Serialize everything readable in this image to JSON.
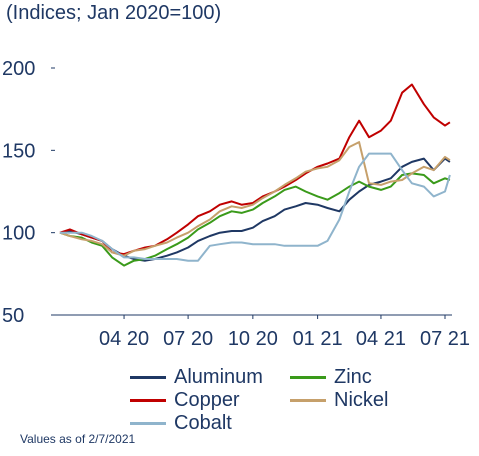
{
  "subtitle": "(Indices; Jan 2020=100)",
  "footnote": "Values as of 2/7/2021",
  "chart_data": {
    "type": "line",
    "title": "",
    "subtitle": "(Indices; Jan 2020=100)",
    "xlabel": "",
    "ylabel": "",
    "ylim": [
      50,
      200
    ],
    "yticks": [
      50,
      100,
      150,
      200
    ],
    "xlim": [
      "2020-01",
      "2021-07"
    ],
    "x_tick_labels": [
      {
        "label": "04 20",
        "x": "2020-04"
      },
      {
        "label": "07 20",
        "x": "2020-07"
      },
      {
        "label": "10 20",
        "x": "2020-10"
      },
      {
        "label": "01 21",
        "x": "2021-01"
      },
      {
        "label": "04 21",
        "x": "2021-04"
      },
      {
        "label": "07 21",
        "x": "2021-07"
      }
    ],
    "grid": false,
    "legend_position": "bottom",
    "series": [
      {
        "name": "Aluminum",
        "color": "#1f3864",
        "points": [
          [
            "2020-01-01",
            100
          ],
          [
            "2020-01-15",
            101
          ],
          [
            "2020-02-01",
            99
          ],
          [
            "2020-02-15",
            97
          ],
          [
            "2020-03-01",
            95
          ],
          [
            "2020-03-15",
            90
          ],
          [
            "2020-04-01",
            86
          ],
          [
            "2020-04-15",
            84
          ],
          [
            "2020-05-01",
            83
          ],
          [
            "2020-05-15",
            84
          ],
          [
            "2020-06-01",
            86
          ],
          [
            "2020-06-15",
            88
          ],
          [
            "2020-07-01",
            91
          ],
          [
            "2020-07-15",
            95
          ],
          [
            "2020-08-01",
            98
          ],
          [
            "2020-08-15",
            100
          ],
          [
            "2020-09-01",
            101
          ],
          [
            "2020-09-15",
            101
          ],
          [
            "2020-10-01",
            103
          ],
          [
            "2020-10-15",
            107
          ],
          [
            "2020-11-01",
            110
          ],
          [
            "2020-11-15",
            114
          ],
          [
            "2020-12-01",
            116
          ],
          [
            "2020-12-15",
            118
          ],
          [
            "2021-01-01",
            117
          ],
          [
            "2021-01-15",
            115
          ],
          [
            "2021-02-01",
            113
          ],
          [
            "2021-02-15",
            120
          ],
          [
            "2021-03-01",
            125
          ],
          [
            "2021-03-15",
            129
          ],
          [
            "2021-04-01",
            131
          ],
          [
            "2021-04-15",
            133
          ],
          [
            "2021-05-01",
            140
          ],
          [
            "2021-05-15",
            143
          ],
          [
            "2021-06-01",
            145
          ],
          [
            "2021-06-15",
            138
          ],
          [
            "2021-07-01",
            145
          ],
          [
            "2021-07-08",
            143
          ]
        ]
      },
      {
        "name": "Zinc",
        "color": "#3a9a1a",
        "points": [
          [
            "2020-01-01",
            100
          ],
          [
            "2020-01-15",
            98
          ],
          [
            "2020-02-01",
            97
          ],
          [
            "2020-02-15",
            94
          ],
          [
            "2020-03-01",
            92
          ],
          [
            "2020-03-15",
            85
          ],
          [
            "2020-04-01",
            80
          ],
          [
            "2020-04-15",
            83
          ],
          [
            "2020-05-01",
            84
          ],
          [
            "2020-05-15",
            86
          ],
          [
            "2020-06-01",
            90
          ],
          [
            "2020-06-15",
            93
          ],
          [
            "2020-07-01",
            97
          ],
          [
            "2020-07-15",
            102
          ],
          [
            "2020-08-01",
            106
          ],
          [
            "2020-08-15",
            110
          ],
          [
            "2020-09-01",
            113
          ],
          [
            "2020-09-15",
            112
          ],
          [
            "2020-10-01",
            114
          ],
          [
            "2020-10-15",
            118
          ],
          [
            "2020-11-01",
            122
          ],
          [
            "2020-11-15",
            126
          ],
          [
            "2020-12-01",
            128
          ],
          [
            "2020-12-15",
            125
          ],
          [
            "2021-01-01",
            122
          ],
          [
            "2021-01-15",
            120
          ],
          [
            "2021-02-01",
            124
          ],
          [
            "2021-02-15",
            128
          ],
          [
            "2021-03-01",
            131
          ],
          [
            "2021-03-15",
            128
          ],
          [
            "2021-04-01",
            126
          ],
          [
            "2021-04-15",
            128
          ],
          [
            "2021-05-01",
            135
          ],
          [
            "2021-05-15",
            136
          ],
          [
            "2021-06-01",
            135
          ],
          [
            "2021-06-15",
            130
          ],
          [
            "2021-07-01",
            133
          ],
          [
            "2021-07-08",
            132
          ]
        ]
      },
      {
        "name": "Copper",
        "color": "#c00000",
        "points": [
          [
            "2020-01-01",
            100
          ],
          [
            "2020-01-15",
            102
          ],
          [
            "2020-02-01",
            99
          ],
          [
            "2020-02-15",
            97
          ],
          [
            "2020-03-01",
            95
          ],
          [
            "2020-03-15",
            88
          ],
          [
            "2020-04-01",
            87
          ],
          [
            "2020-04-15",
            89
          ],
          [
            "2020-05-01",
            91
          ],
          [
            "2020-05-15",
            92
          ],
          [
            "2020-06-01",
            96
          ],
          [
            "2020-06-15",
            100
          ],
          [
            "2020-07-01",
            105
          ],
          [
            "2020-07-15",
            110
          ],
          [
            "2020-08-01",
            113
          ],
          [
            "2020-08-15",
            117
          ],
          [
            "2020-09-01",
            119
          ],
          [
            "2020-09-15",
            117
          ],
          [
            "2020-10-01",
            118
          ],
          [
            "2020-10-15",
            122
          ],
          [
            "2020-11-01",
            125
          ],
          [
            "2020-11-15",
            128
          ],
          [
            "2020-12-01",
            132
          ],
          [
            "2020-12-15",
            136
          ],
          [
            "2021-01-01",
            140
          ],
          [
            "2021-01-15",
            142
          ],
          [
            "2021-02-01",
            145
          ],
          [
            "2021-02-15",
            158
          ],
          [
            "2021-03-01",
            168
          ],
          [
            "2021-03-15",
            158
          ],
          [
            "2021-04-01",
            162
          ],
          [
            "2021-04-15",
            168
          ],
          [
            "2021-05-01",
            185
          ],
          [
            "2021-05-15",
            190
          ],
          [
            "2021-06-01",
            178
          ],
          [
            "2021-06-15",
            170
          ],
          [
            "2021-07-01",
            165
          ],
          [
            "2021-07-08",
            167
          ]
        ]
      },
      {
        "name": "Nickel",
        "color": "#c6a06b",
        "points": [
          [
            "2020-01-01",
            100
          ],
          [
            "2020-01-15",
            98
          ],
          [
            "2020-02-01",
            96
          ],
          [
            "2020-02-15",
            95
          ],
          [
            "2020-03-01",
            93
          ],
          [
            "2020-03-15",
            88
          ],
          [
            "2020-04-01",
            86
          ],
          [
            "2020-04-15",
            89
          ],
          [
            "2020-05-01",
            90
          ],
          [
            "2020-05-15",
            92
          ],
          [
            "2020-06-01",
            94
          ],
          [
            "2020-06-15",
            97
          ],
          [
            "2020-07-01",
            100
          ],
          [
            "2020-07-15",
            104
          ],
          [
            "2020-08-01",
            108
          ],
          [
            "2020-08-15",
            113
          ],
          [
            "2020-09-01",
            116
          ],
          [
            "2020-09-15",
            115
          ],
          [
            "2020-10-01",
            117
          ],
          [
            "2020-10-15",
            121
          ],
          [
            "2020-11-01",
            125
          ],
          [
            "2020-11-15",
            129
          ],
          [
            "2020-12-01",
            133
          ],
          [
            "2020-12-15",
            137
          ],
          [
            "2021-01-01",
            139
          ],
          [
            "2021-01-15",
            140
          ],
          [
            "2021-02-01",
            144
          ],
          [
            "2021-02-15",
            152
          ],
          [
            "2021-03-01",
            155
          ],
          [
            "2021-03-15",
            130
          ],
          [
            "2021-04-01",
            129
          ],
          [
            "2021-04-15",
            131
          ],
          [
            "2021-05-01",
            132
          ],
          [
            "2021-05-15",
            136
          ],
          [
            "2021-06-01",
            140
          ],
          [
            "2021-06-15",
            138
          ],
          [
            "2021-07-01",
            146
          ],
          [
            "2021-07-08",
            144
          ]
        ]
      },
      {
        "name": "Cobalt",
        "color": "#8fb4cc",
        "points": [
          [
            "2020-01-01",
            100
          ],
          [
            "2020-01-15",
            100
          ],
          [
            "2020-02-01",
            100
          ],
          [
            "2020-02-15",
            98
          ],
          [
            "2020-03-01",
            95
          ],
          [
            "2020-03-15",
            90
          ],
          [
            "2020-04-01",
            85
          ],
          [
            "2020-04-15",
            85
          ],
          [
            "2020-05-01",
            84
          ],
          [
            "2020-05-15",
            84
          ],
          [
            "2020-06-01",
            84
          ],
          [
            "2020-06-15",
            84
          ],
          [
            "2020-07-01",
            83
          ],
          [
            "2020-07-15",
            83
          ],
          [
            "2020-08-01",
            92
          ],
          [
            "2020-08-15",
            93
          ],
          [
            "2020-09-01",
            94
          ],
          [
            "2020-09-15",
            94
          ],
          [
            "2020-10-01",
            93
          ],
          [
            "2020-10-15",
            93
          ],
          [
            "2020-11-01",
            93
          ],
          [
            "2020-11-15",
            92
          ],
          [
            "2020-12-01",
            92
          ],
          [
            "2020-12-15",
            92
          ],
          [
            "2021-01-01",
            92
          ],
          [
            "2021-01-15",
            95
          ],
          [
            "2021-02-01",
            108
          ],
          [
            "2021-02-15",
            125
          ],
          [
            "2021-03-01",
            140
          ],
          [
            "2021-03-15",
            148
          ],
          [
            "2021-04-01",
            148
          ],
          [
            "2021-04-15",
            148
          ],
          [
            "2021-05-01",
            138
          ],
          [
            "2021-05-15",
            130
          ],
          [
            "2021-06-01",
            128
          ],
          [
            "2021-06-15",
            122
          ],
          [
            "2021-07-01",
            125
          ],
          [
            "2021-07-08",
            135
          ]
        ]
      }
    ],
    "legend_order": [
      "Aluminum",
      "Zinc",
      "Copper",
      "Nickel",
      "Cobalt"
    ]
  }
}
